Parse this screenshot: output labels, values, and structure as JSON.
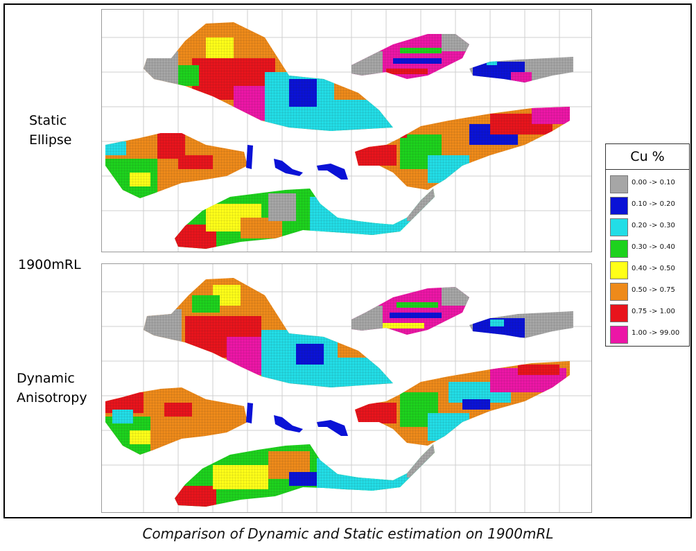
{
  "labels": {
    "static_line1": "Static",
    "static_line2": "Ellipse",
    "level": "1900mRL",
    "dynamic_line1": "Dynamic",
    "dynamic_line2": "Anisotropy"
  },
  "legend": {
    "title": "Cu %",
    "items": [
      {
        "label": "0.00 -> 0.10",
        "color": "#a6a6a6"
      },
      {
        "label": "0.10 -> 0.20",
        "color": "#0a12d6"
      },
      {
        "label": "0.20 -> 0.30",
        "color": "#22dde6"
      },
      {
        "label": "0.30 -> 0.40",
        "color": "#1dd21d"
      },
      {
        "label": "0.40 -> 0.50",
        "color": "#ffff18"
      },
      {
        "label": "0.50 -> 0.75",
        "color": "#ee8a1a"
      },
      {
        "label": "0.75 -> 1.00",
        "color": "#e8141c"
      },
      {
        "label": "1.00 -> 99.00",
        "color": "#ec16a6"
      }
    ]
  },
  "caption": "Comparison of Dynamic and Static estimation on 1900mRL"
}
